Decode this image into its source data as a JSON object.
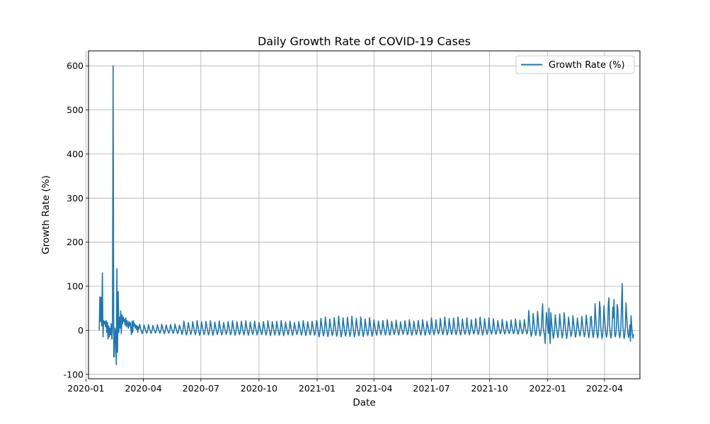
{
  "chart_data": {
    "type": "line",
    "title": "Daily Growth Rate of COVID-19 Cases",
    "xlabel": "Date",
    "ylabel": "Growth Rate (%)",
    "x_type": "date",
    "xlim": [
      "2020-01-05",
      "2022-05-27"
    ],
    "ylim": [
      -110,
      634
    ],
    "x_ticks": [
      "2020-01",
      "2020-04",
      "2020-07",
      "2020-10",
      "2021-01",
      "2021-04",
      "2021-07",
      "2021-10",
      "2022-01",
      "2022-04"
    ],
    "y_ticks": [
      -100,
      0,
      100,
      200,
      300,
      400,
      500,
      600
    ],
    "grid": true,
    "legend": {
      "position": "top-right",
      "entries": [
        "Growth Rate (%)"
      ]
    },
    "series": [
      {
        "name": "Growth Rate (%)",
        "color": "#1f77b4",
        "points": [
          [
            "2020-01-22",
            0
          ],
          [
            "2020-01-23",
            76
          ],
          [
            "2020-01-24",
            20
          ],
          [
            "2020-01-25",
            75
          ],
          [
            "2020-01-26",
            10
          ],
          [
            "2020-01-27",
            130
          ],
          [
            "2020-01-28",
            -15
          ],
          [
            "2020-01-29",
            22
          ],
          [
            "2020-01-30",
            15
          ],
          [
            "2020-01-31",
            20
          ],
          [
            "2020-02-01",
            8
          ],
          [
            "2020-02-02",
            22
          ],
          [
            "2020-02-03",
            -5
          ],
          [
            "2020-02-04",
            18
          ],
          [
            "2020-02-05",
            -20
          ],
          [
            "2020-02-06",
            10
          ],
          [
            "2020-02-07",
            -15
          ],
          [
            "2020-02-08",
            5
          ],
          [
            "2020-02-09",
            -10
          ],
          [
            "2020-02-10",
            15
          ],
          [
            "2020-02-11",
            -20
          ],
          [
            "2020-02-12",
            8
          ],
          [
            "2020-02-13",
            600
          ],
          [
            "2020-02-14",
            -60
          ],
          [
            "2020-02-15",
            -60
          ],
          [
            "2020-02-16",
            5
          ],
          [
            "2020-02-17",
            -8
          ],
          [
            "2020-02-18",
            -78
          ],
          [
            "2020-02-19",
            140
          ],
          [
            "2020-02-20",
            -50
          ],
          [
            "2020-02-21",
            88
          ],
          [
            "2020-02-22",
            -5
          ],
          [
            "2020-02-23",
            30
          ],
          [
            "2020-02-24",
            5
          ],
          [
            "2020-02-25",
            44
          ],
          [
            "2020-02-26",
            -8
          ],
          [
            "2020-02-27",
            35
          ],
          [
            "2020-02-28",
            15
          ],
          [
            "2020-02-29",
            30
          ],
          [
            "2020-03-01",
            20
          ],
          [
            "2020-03-02",
            25
          ],
          [
            "2020-03-03",
            12
          ],
          [
            "2020-03-04",
            28
          ],
          [
            "2020-03-05",
            8
          ],
          [
            "2020-03-06",
            22
          ],
          [
            "2020-03-07",
            15
          ],
          [
            "2020-03-08",
            5
          ],
          [
            "2020-03-09",
            20
          ],
          [
            "2020-03-10",
            10
          ],
          [
            "2020-03-11",
            18
          ],
          [
            "2020-03-12",
            5
          ],
          [
            "2020-03-13",
            -10
          ],
          [
            "2020-03-14",
            20
          ],
          [
            "2020-03-15",
            -5
          ],
          [
            "2020-03-16",
            22
          ],
          [
            "2020-03-17",
            10
          ],
          [
            "2020-03-18",
            15
          ],
          [
            "2020-03-19",
            5
          ],
          [
            "2020-03-20",
            12
          ],
          [
            "2020-03-21",
            2
          ],
          [
            "2020-03-22",
            10
          ],
          [
            "2020-03-23",
            -5
          ],
          [
            "2020-03-24",
            8
          ]
        ],
        "weekly": {
          "start": "2020-03-25",
          "end": "2022-05-17",
          "segments": [
            {
              "until": "2020-05-31",
              "peak": 14,
              "trough": -10
            },
            {
              "until": "2020-09-30",
              "peak": 22,
              "trough": -15
            },
            {
              "until": "2020-12-31",
              "peak": 22,
              "trough": -16
            },
            {
              "until": "2021-03-31",
              "peak": 32,
              "trough": -20
            },
            {
              "until": "2021-06-30",
              "peak": 24,
              "trough": -15
            },
            {
              "until": "2021-09-30",
              "peak": 30,
              "trough": -14
            },
            {
              "until": "2021-11-30",
              "peak": 26,
              "trough": -12
            },
            {
              "until": "2021-12-31",
              "peak": 45,
              "trough": -18
            },
            {
              "until": "2022-01-31",
              "peak": 40,
              "trough": -25
            },
            {
              "until": "2022-03-10",
              "peak": 35,
              "trough": -22
            },
            {
              "until": "2022-05-17",
              "peak": 65,
              "trough": -25
            }
          ],
          "spikes": [
            [
              "2021-12-24",
              60
            ],
            [
              "2021-12-28",
              -30
            ],
            [
              "2022-01-03",
              50
            ],
            [
              "2022-01-05",
              -30
            ],
            [
              "2022-03-25",
              52
            ],
            [
              "2022-04-08",
              74
            ],
            [
              "2022-04-16",
              70
            ],
            [
              "2022-04-22",
              48
            ],
            [
              "2022-04-29",
              106
            ],
            [
              "2022-05-05",
              62
            ],
            [
              "2022-05-12",
              -25
            ]
          ]
        }
      }
    ]
  }
}
